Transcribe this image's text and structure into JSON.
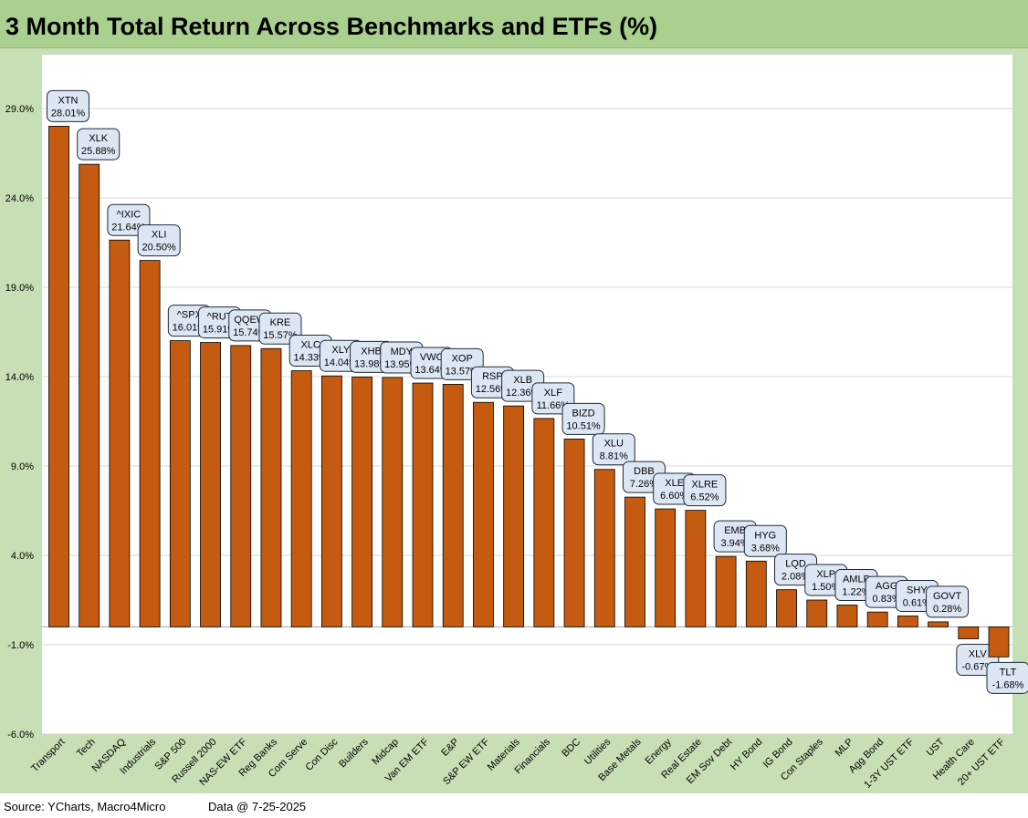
{
  "chart_data": {
    "type": "bar",
    "title": "3 Month Total Return Across Benchmarks and ETFs (%)",
    "xlabel": "",
    "ylabel": "",
    "ylim": [
      -6,
      31
    ],
    "yticks": [
      29,
      24,
      19,
      14,
      9,
      4,
      -1,
      -6
    ],
    "ytick_labels": [
      "29.0%",
      "24.0%",
      "19.0%",
      "14.0%",
      "9.0%",
      "4.0%",
      "-1.0%",
      "-6.0%"
    ],
    "grid": true,
    "bar_color": "#c55a11",
    "categories": [
      "Transport",
      "Tech",
      "NASDAQ",
      "Industrials",
      "S&P 500",
      "Russell 2000",
      "NAS-EW ETF",
      "Reg Banks",
      "Com Serve",
      "Con Disc",
      "Builders",
      "Midcap",
      "Van EM ETF",
      "E&P",
      "S&P EW ETF",
      "Materials",
      "Financials",
      "BDC",
      "Utilities",
      "Base Metals",
      "Energy",
      "Real Estate",
      "EM Sov Debt",
      "HY Bond",
      "IG Bond",
      "Con Staples",
      "MLP",
      "Agg Bond",
      "1-3Y UST ETF",
      "UST",
      "Health Care",
      "20+ UST ETF"
    ],
    "tickers": [
      "XTN",
      "XLK",
      "^IXIC",
      "XLI",
      "^SPX",
      "^RUT",
      "QQEW",
      "KRE",
      "XLC",
      "XLY",
      "XHB",
      "MDY",
      "VWO",
      "XOP",
      "RSP",
      "XLB",
      "XLF",
      "BIZD",
      "XLU",
      "DBB",
      "XLE",
      "XLRE",
      "EMB",
      "HYG",
      "LQD",
      "XLP",
      "AMLP",
      "AGG",
      "SHY",
      "GOVT",
      "XLV",
      "TLT"
    ],
    "value_labels": [
      "28.01%",
      "25.88%",
      "21.64%",
      "20.50%",
      "16.01%",
      "15.91%",
      "15.74%",
      "15.57%",
      "14.33%",
      "14.04%",
      "13.98%",
      "13.95%",
      "13.64%",
      "13.57%",
      "12.56%",
      "12.36%",
      "11.66%",
      "10.51%",
      "8.81%",
      "7.26%",
      "6.60%",
      "6.52%",
      "3.94%",
      "3.68%",
      "2.08%",
      "1.50%",
      "1.22%",
      "0.83%",
      "0.61%",
      "0.28%",
      "-0.67%",
      "-1.68%"
    ],
    "values": [
      28.01,
      25.88,
      21.64,
      20.5,
      16.01,
      15.91,
      15.74,
      15.57,
      14.33,
      14.04,
      13.98,
      13.95,
      13.64,
      13.57,
      12.56,
      12.36,
      11.66,
      10.51,
      8.81,
      7.26,
      6.6,
      6.52,
      3.94,
      3.68,
      2.08,
      1.5,
      1.22,
      0.83,
      0.61,
      0.28,
      -0.67,
      -1.68
    ]
  },
  "footer": {
    "source": "Source: YCharts, Macro4Micro",
    "date": "Data @ 7-25-2025"
  }
}
